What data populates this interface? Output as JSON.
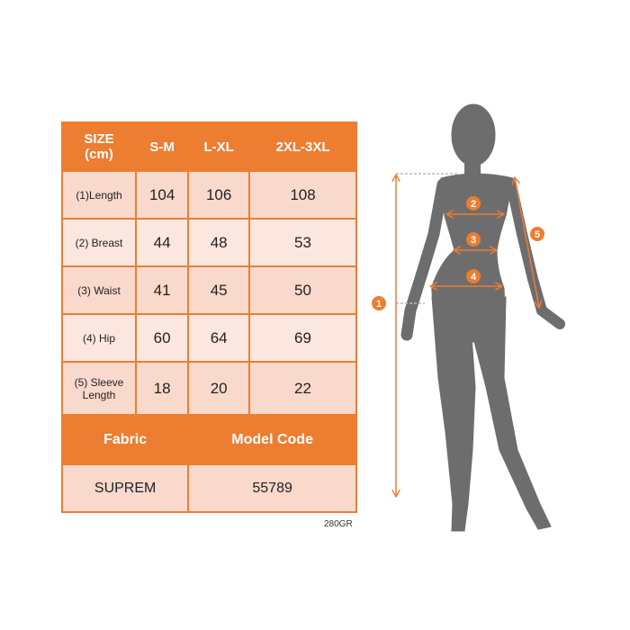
{
  "table": {
    "header": [
      "SIZE\n(cm)",
      "S-M",
      "L-XL",
      "2XL-3XL"
    ],
    "rows": [
      {
        "label": "(1)Length",
        "values": [
          "104",
          "106",
          "108"
        ]
      },
      {
        "label": "(2) Breast",
        "values": [
          "44",
          "48",
          "53"
        ]
      },
      {
        "label": "(3) Waist",
        "values": [
          "41",
          "45",
          "50"
        ]
      },
      {
        "label": "(4) Hip",
        "values": [
          "60",
          "64",
          "69"
        ]
      },
      {
        "label": "(5) Sleeve Length",
        "values": [
          "18",
          "20",
          "22"
        ]
      }
    ],
    "fabric_label": "Fabric",
    "model_code_label": "Model Code",
    "fabric": "SUPREM",
    "model_code": "55789"
  },
  "note": "280GR",
  "figure": {
    "markers": [
      "1",
      "2",
      "3",
      "4",
      "5"
    ],
    "silhouette_color": "#6d6d6d",
    "accent": "#ed7d31"
  }
}
